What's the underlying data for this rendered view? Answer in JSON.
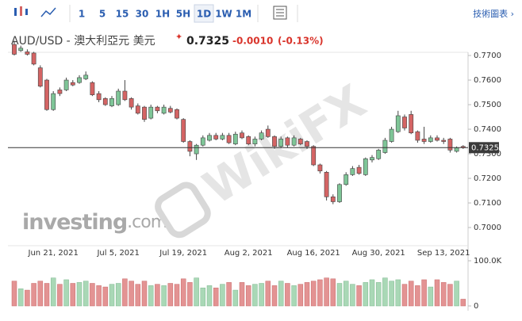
{
  "toolbar": {
    "intervals": [
      "1",
      "5",
      "15",
      "30",
      "1H",
      "5H",
      "1D",
      "1W",
      "1M"
    ],
    "selected": 6,
    "link": "技術圖表 ›"
  },
  "header": {
    "price": "0.7325",
    "change": "-0.0010",
    "change_pct": "(-0.13%)"
  },
  "watermarks": [
    "investing",
    ".com",
    "WikiFX"
  ],
  "chart_data": {
    "type": "candlestick",
    "title": "AUD/USD - 澳大利亞元 美元",
    "categories": [
      null,
      null,
      null,
      null,
      null,
      null,
      "Jun 21, 2021",
      null,
      null,
      null,
      null,
      null,
      null,
      null,
      null,
      null,
      "Jul 5, 2021",
      null,
      null,
      null,
      null,
      null,
      null,
      null,
      null,
      null,
      "Jul 19, 2021",
      null,
      null,
      null,
      null,
      null,
      null,
      null,
      null,
      null,
      "Aug 2, 2021",
      null,
      null,
      null,
      null,
      null,
      null,
      null,
      null,
      null,
      "Aug 16, 2021",
      null,
      null,
      null,
      null,
      null,
      null,
      null,
      null,
      null,
      "Aug 30, 2021",
      null,
      null,
      null,
      null,
      null,
      null,
      null,
      null,
      null,
      "Sep 13, 2021",
      null,
      null,
      null
    ],
    "open": [
      0.7745,
      0.772,
      0.7715,
      0.771,
      0.765,
      0.76,
      0.748,
      0.756,
      0.756,
      0.759,
      0.759,
      0.7605,
      0.759,
      0.7545,
      0.7525,
      0.7495,
      0.75,
      0.7555,
      0.7525,
      0.7495,
      0.749,
      0.7445,
      0.749,
      0.7465,
      0.7485,
      0.748,
      0.744,
      0.735,
      0.73,
      0.7335,
      0.7355,
      0.7375,
      0.736,
      0.7375,
      0.734,
      0.7385,
      0.737,
      0.734,
      0.736,
      0.74,
      0.737,
      0.733,
      0.7365,
      0.7335,
      0.736,
      0.735,
      0.733,
      0.7255,
      0.7225,
      0.7125,
      0.7105,
      0.7175,
      0.7215,
      0.7245,
      0.7215,
      0.7275,
      0.728,
      0.7305,
      0.735,
      0.739,
      0.745,
      0.746,
      0.739,
      0.736,
      0.735,
      0.7365,
      0.7355,
      0.736,
      0.731,
      0.733
    ],
    "high": [
      0.776,
      0.774,
      0.7725,
      0.7715,
      0.766,
      0.7605,
      0.7555,
      0.757,
      0.761,
      0.76,
      0.762,
      0.7635,
      0.7595,
      0.7555,
      0.753,
      0.7535,
      0.7565,
      0.76,
      0.753,
      0.7505,
      0.7495,
      0.75,
      0.7495,
      0.75,
      0.7495,
      0.7485,
      0.7445,
      0.7355,
      0.734,
      0.7375,
      0.7385,
      0.7385,
      0.7385,
      0.7385,
      0.739,
      0.7395,
      0.7375,
      0.737,
      0.7395,
      0.7415,
      0.7375,
      0.737,
      0.737,
      0.7375,
      0.7365,
      0.7355,
      0.7335,
      0.726,
      0.723,
      0.7135,
      0.718,
      0.7225,
      0.725,
      0.7255,
      0.7285,
      0.7295,
      0.732,
      0.7365,
      0.741,
      0.7475,
      0.746,
      0.7475,
      0.7395,
      0.741,
      0.7375,
      0.7375,
      0.7365,
      0.7365,
      0.733,
      0.7335
    ],
    "low": [
      0.77,
      0.7715,
      0.77,
      0.766,
      0.757,
      0.7475,
      0.7475,
      0.7535,
      0.7555,
      0.7575,
      0.7585,
      0.76,
      0.7535,
      0.751,
      0.7495,
      0.749,
      0.7495,
      0.7515,
      0.748,
      0.746,
      0.743,
      0.744,
      0.7465,
      0.746,
      0.7465,
      0.744,
      0.7345,
      0.729,
      0.7275,
      0.733,
      0.735,
      0.7355,
      0.7355,
      0.734,
      0.7335,
      0.736,
      0.7335,
      0.733,
      0.7355,
      0.7365,
      0.732,
      0.7325,
      0.7325,
      0.733,
      0.7335,
      0.732,
      0.725,
      0.722,
      0.711,
      0.7095,
      0.71,
      0.717,
      0.721,
      0.7215,
      0.721,
      0.7265,
      0.7275,
      0.73,
      0.7345,
      0.7385,
      0.7395,
      0.738,
      0.7345,
      0.734,
      0.7345,
      0.735,
      0.734,
      0.7305,
      0.7305,
      0.732
    ],
    "close": [
      0.7705,
      0.773,
      0.7705,
      0.7665,
      0.7575,
      0.748,
      0.7545,
      0.7545,
      0.76,
      0.758,
      0.761,
      0.762,
      0.754,
      0.752,
      0.75,
      0.7525,
      0.7555,
      0.752,
      0.749,
      0.7465,
      0.744,
      0.749,
      0.7475,
      0.749,
      0.747,
      0.7445,
      0.735,
      0.731,
      0.7335,
      0.7365,
      0.7375,
      0.736,
      0.7375,
      0.7345,
      0.738,
      0.7365,
      0.734,
      0.736,
      0.7385,
      0.737,
      0.733,
      0.736,
      0.7335,
      0.7365,
      0.734,
      0.733,
      0.7255,
      0.723,
      0.7125,
      0.7105,
      0.7175,
      0.7215,
      0.724,
      0.722,
      0.728,
      0.7285,
      0.7315,
      0.7355,
      0.74,
      0.7455,
      0.7405,
      0.7385,
      0.7355,
      0.735,
      0.7365,
      0.7355,
      0.735,
      0.7315,
      0.7325,
      0.7325
    ],
    "volume": [
      55000,
      38000,
      35000,
      50000,
      55000,
      50000,
      62000,
      48000,
      58000,
      50000,
      52000,
      55000,
      50000,
      45000,
      42000,
      48000,
      50000,
      60000,
      55000,
      48000,
      55000,
      45000,
      48000,
      45000,
      50000,
      48000,
      60000,
      52000,
      62000,
      40000,
      45000,
      40000,
      48000,
      52000,
      35000,
      52000,
      45000,
      48000,
      50000,
      55000,
      45000,
      55000,
      50000,
      45000,
      48000,
      52000,
      55000,
      58000,
      62000,
      60000,
      50000,
      55000,
      48000,
      45000,
      52000,
      58000,
      52000,
      62000,
      55000,
      58000,
      48000,
      55000,
      45000,
      58000,
      42000,
      58000,
      52000,
      48000,
      55000,
      15000
    ],
    "last": 0.7325,
    "ylim": [
      0.6926,
      0.7713
    ],
    "yticks": [
      {
        "value": 0.77,
        "label": "0.7700"
      },
      {
        "value": 0.76,
        "label": "0.7600"
      },
      {
        "value": 0.75,
        "label": "0.7500"
      },
      {
        "value": 0.74,
        "label": "0.7400"
      },
      {
        "value": 0.73,
        "label": "0.7300"
      },
      {
        "value": 0.72,
        "label": "0.7200"
      },
      {
        "value": 0.71,
        "label": "0.7100"
      },
      {
        "value": 0.7,
        "label": "0.7000"
      }
    ],
    "volume_ylim": [
      0,
      100000
    ],
    "volume_yticks": [
      {
        "value": 100000,
        "label": "100.0K"
      },
      0
    ],
    "up_color": "#7ec597",
    "down_color": "#d46464",
    "volume_up_color": "#a9d8b6",
    "volume_down_color": "#e39393"
  }
}
